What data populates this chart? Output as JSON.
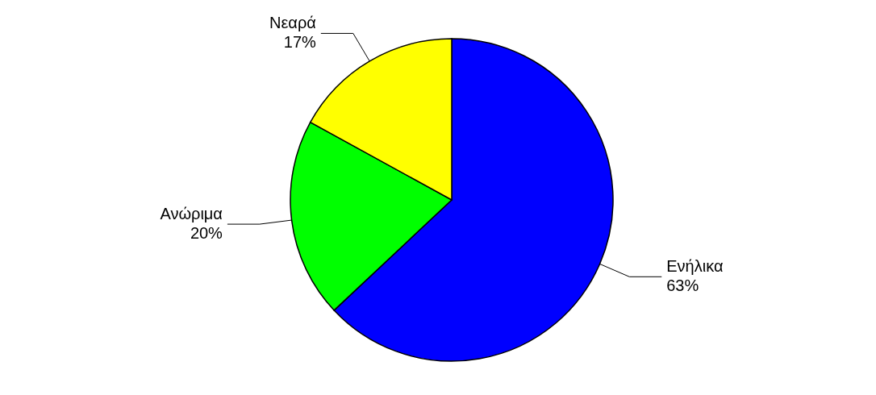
{
  "chart_data": {
    "type": "pie",
    "categories": [
      "Ενήλικα",
      "Ανώριμα",
      "Νεαρά"
    ],
    "values": [
      63,
      20,
      17
    ],
    "colors": [
      "#0000ff",
      "#00ff00",
      "#ffff00"
    ],
    "value_labels": [
      "63%",
      "20%",
      "17%"
    ]
  }
}
